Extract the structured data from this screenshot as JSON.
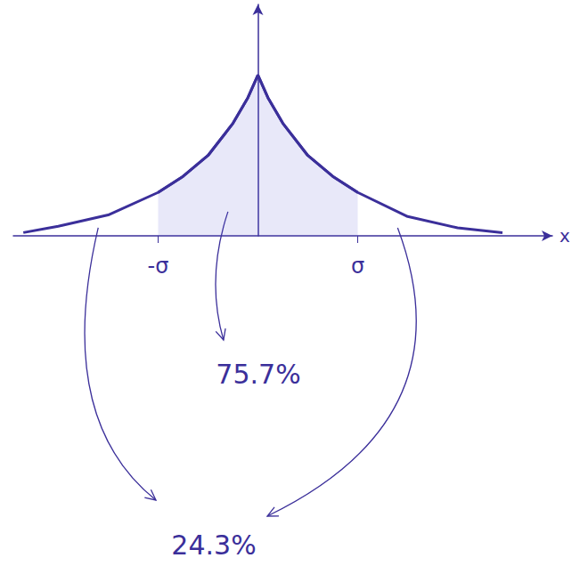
{
  "chart_data": {
    "type": "line",
    "color": "#3b2f9a",
    "x": [
      -2.35,
      -2.0,
      -1.5,
      -1.0,
      -0.75,
      -0.5,
      -0.25,
      -0.1,
      0,
      0.1,
      0.25,
      0.5,
      0.75,
      1.0,
      1.5,
      2.0,
      2.45
    ],
    "values": [
      0.02,
      0.06,
      0.13,
      0.27,
      0.37,
      0.5,
      0.7,
      0.86,
      1.0,
      0.86,
      0.7,
      0.5,
      0.37,
      0.27,
      0.12,
      0.05,
      0.02
    ],
    "xlim": [
      -2.45,
      2.95
    ],
    "ylim": [
      0,
      1.44
    ],
    "xticks": [
      {
        "value": -1,
        "label": "-σ"
      },
      {
        "value": 1,
        "label": "σ"
      }
    ],
    "xlabel": "x",
    "tick_labels": "x",
    "grid": false,
    "annotations": [
      "75.7%",
      "24.3%"
    ]
  }
}
